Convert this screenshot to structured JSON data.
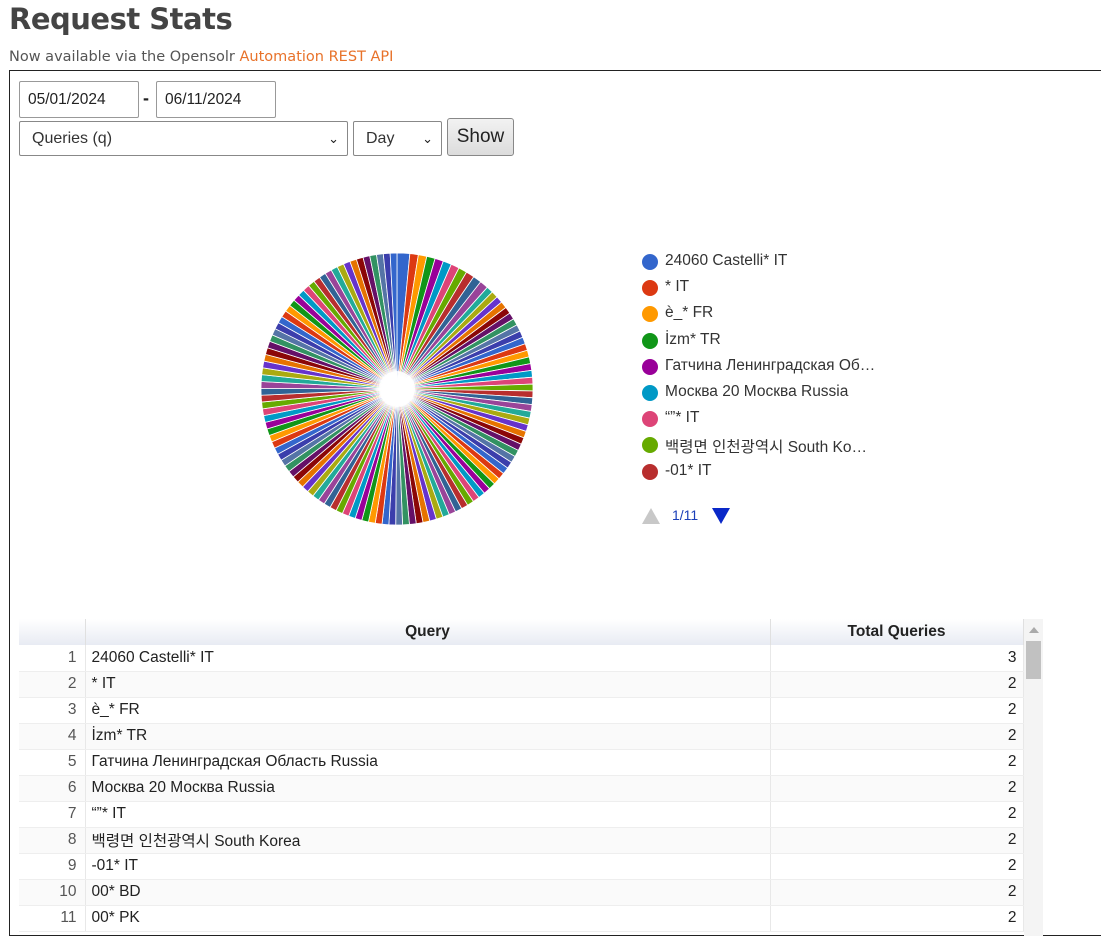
{
  "header": {
    "title": "Request Stats",
    "subtitle_prefix": "Now available via the Opensolr ",
    "subtitle_link": "Automation REST API"
  },
  "filters": {
    "date_from": "05/01/2024",
    "date_separator": "-",
    "date_to": "06/11/2024",
    "metric_selected": "Queries (q)",
    "interval_selected": "Day",
    "show_label": "Show"
  },
  "chart_data": {
    "type": "pie",
    "legend_position": "right",
    "slices": [
      {
        "label": "24060 Castelli* IT",
        "value": 3,
        "color": "#3366cc"
      },
      {
        "label": "* IT",
        "value": 2,
        "color": "#dc3912"
      },
      {
        "label": "è_* FR",
        "value": 2,
        "color": "#ff9900"
      },
      {
        "label": "İzm* TR",
        "value": 2,
        "color": "#109618"
      },
      {
        "label": "Гатчина Ленинградская Область Russia",
        "value": 2,
        "color": "#990099"
      },
      {
        "label": "Москва 20 Москва Russia",
        "value": 2,
        "color": "#0099c6"
      },
      {
        "label": "“”* IT",
        "value": 2,
        "color": "#dd4477"
      },
      {
        "label": "백령면 인천광역시 South Korea",
        "value": 2,
        "color": "#66aa00"
      },
      {
        "label": "-01* IT",
        "value": 2,
        "color": "#b82e2e"
      },
      {
        "label": "00* BD",
        "value": 2,
        "color": "#316395"
      },
      {
        "label": "00* PK",
        "value": 2,
        "color": "#994499"
      }
    ],
    "legend_visible": [
      {
        "label": "24060 Castelli* IT",
        "color": "#3366cc"
      },
      {
        "label": "* IT",
        "color": "#dc3912"
      },
      {
        "label": "è_* FR",
        "color": "#ff9900"
      },
      {
        "label": "İzm* TR",
        "color": "#109618"
      },
      {
        "label": "Гатчина Ленинградская Об…",
        "color": "#990099"
      },
      {
        "label": "Москва 20 Москва Russia",
        "color": "#0099c6"
      },
      {
        "label": "“”* IT",
        "color": "#dd4477"
      },
      {
        "label": "백령면 인천광역시 South Ko…",
        "color": "#66aa00"
      },
      {
        "label": "-01* IT",
        "color": "#b82e2e"
      }
    ],
    "legend_page": "1/11"
  },
  "table": {
    "headers": [
      "",
      "Query",
      "Total Queries"
    ],
    "rows": [
      {
        "n": "1",
        "query": "24060 Castelli* IT",
        "total": "3"
      },
      {
        "n": "2",
        "query": "* IT",
        "total": "2"
      },
      {
        "n": "3",
        "query": "è_* FR",
        "total": "2"
      },
      {
        "n": "4",
        "query": "İzm* TR",
        "total": "2"
      },
      {
        "n": "5",
        "query": "Гатчина Ленинградская Область Russia",
        "total": "2"
      },
      {
        "n": "6",
        "query": "Москва 20 Москва Russia",
        "total": "2"
      },
      {
        "n": "7",
        "query": "“”* IT",
        "total": "2"
      },
      {
        "n": "8",
        "query": "백령면 인천광역시 South Korea",
        "total": "2"
      },
      {
        "n": "9",
        "query": "-01* IT",
        "total": "2"
      },
      {
        "n": "10",
        "query": "00* BD",
        "total": "2"
      },
      {
        "n": "11",
        "query": "00* PK",
        "total": "2"
      }
    ]
  }
}
